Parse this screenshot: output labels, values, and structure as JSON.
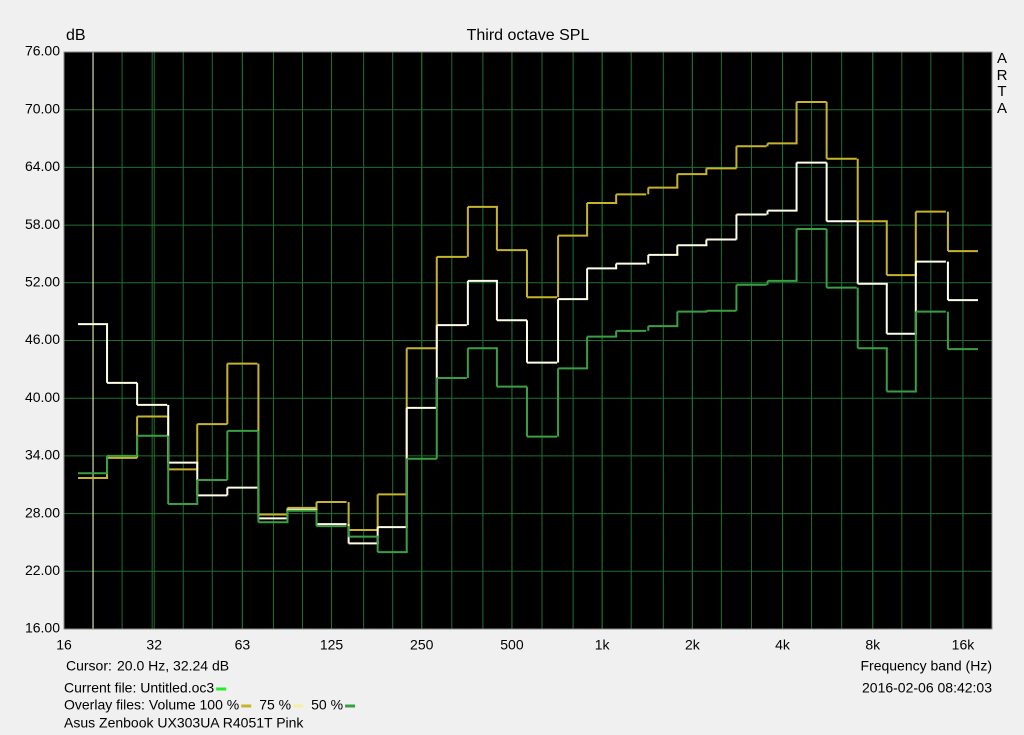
{
  "chart_data": {
    "type": "step",
    "title": "Third octave SPL",
    "y_label": "dB",
    "x_label": "Frequency band (Hz)",
    "watermark": "ARTA",
    "log_x": true,
    "grid": true,
    "grid_color": "#1e6f35",
    "background": "#000000",
    "x": [
      20,
      25,
      31.5,
      40,
      50,
      63,
      80,
      100,
      125,
      160,
      200,
      250,
      315,
      400,
      500,
      630,
      800,
      1000,
      1250,
      1600,
      2000,
      2500,
      3150,
      4000,
      5000,
      6300,
      8000,
      10000,
      12500,
      16000
    ],
    "xlim": [
      16,
      20000
    ],
    "xticks": [
      16,
      32,
      63,
      125,
      250,
      500,
      {
        "value": 1000,
        "label": "1k"
      },
      {
        "value": 2000,
        "label": "2k"
      },
      {
        "value": 4000,
        "label": "4k"
      },
      {
        "value": 8000,
        "label": "8k"
      },
      {
        "value": 16000,
        "label": "16k"
      }
    ],
    "ylim": [
      16,
      76
    ],
    "yticks": [
      {
        "value": 16,
        "label": "16.00"
      },
      {
        "value": 22,
        "label": "22.00"
      },
      {
        "value": 28,
        "label": "28.00"
      },
      {
        "value": 34,
        "label": "34.00"
      },
      {
        "value": 40,
        "label": "40.00"
      },
      {
        "value": 46,
        "label": "46.00"
      },
      {
        "value": 52,
        "label": "52.00"
      },
      {
        "value": 58,
        "label": "58.00"
      },
      {
        "value": 64,
        "label": "64.00"
      },
      {
        "value": 70,
        "label": "70.00"
      },
      {
        "value": 76,
        "label": "76.00"
      }
    ],
    "series": [
      {
        "name": "Volume 100 %",
        "color": "#c8b42a",
        "values": [
          31.7,
          33.8,
          38.1,
          32.6,
          37.3,
          43.6,
          27.9,
          28.6,
          29.2,
          26.3,
          30.0,
          45.2,
          54.7,
          59.9,
          55.4,
          50.5,
          56.9,
          60.3,
          61.2,
          61.9,
          63.3,
          63.9,
          66.2,
          66.5,
          70.8,
          64.9,
          58.4,
          52.8,
          59.4,
          55.3
        ]
      },
      {
        "name": "75 %",
        "color": "#ffffe6",
        "values": [
          47.7,
          41.6,
          39.3,
          33.3,
          29.9,
          30.7,
          27.5,
          28.4,
          26.9,
          24.9,
          26.6,
          39.0,
          47.6,
          52.2,
          48.1,
          43.7,
          50.3,
          53.5,
          54.0,
          54.9,
          55.9,
          56.5,
          59.1,
          59.5,
          64.5,
          58.4,
          51.9,
          46.7,
          54.2,
          50.2
        ]
      },
      {
        "name": "50 %",
        "color": "#3a9f42",
        "values": [
          32.2,
          34.0,
          36.1,
          29.0,
          31.5,
          36.6,
          27.1,
          28.3,
          26.7,
          25.6,
          24.0,
          33.7,
          42.1,
          45.2,
          41.2,
          36.0,
          43.1,
          46.4,
          47.0,
          47.5,
          49.0,
          49.1,
          51.8,
          52.2,
          57.6,
          51.5,
          45.2,
          40.7,
          49.0,
          45.1
        ]
      }
    ],
    "cursor": {
      "label": "Cursor:",
      "text": "20.0 Hz, 32.24 dB",
      "x": 20,
      "color": "#ffffc0"
    },
    "current_file": {
      "text": "Current file: Untitled.oc3",
      "color": "#22ee22"
    },
    "overlay_label": "Overlay files:",
    "timestamp": "2016-02-06   08:42:03",
    "description": "Asus Zenbook UX303UA R4051T Pink"
  }
}
